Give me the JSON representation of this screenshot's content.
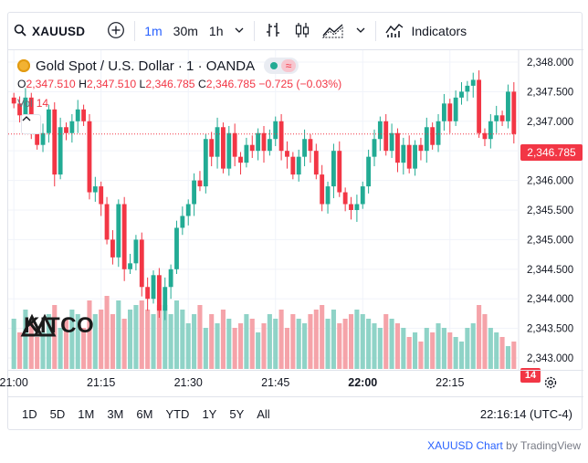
{
  "toolbar": {
    "symbol": "XAUUSD",
    "timeframes": [
      "1m",
      "30m",
      "1h"
    ],
    "active_timeframe": "1m",
    "indicators_label": "Indicators"
  },
  "legend": {
    "title": "Gold Spot / U.S. Dollar · 1 · OANDA",
    "o_label": "O",
    "o_value": "2,347.510",
    "h_label": "H",
    "h_value": "2,347.510",
    "l_label": "L",
    "l_value": "2,346.785",
    "c_label": "C",
    "c_value": "2,346.785",
    "change": "−0.725 (−0.03%)",
    "vol_label": "Vol",
    "vol_value": "14"
  },
  "colors": {
    "up": "#22ab94",
    "down": "#f23645",
    "up_vol": "#8fd3c7",
    "down_vol": "#f5a3a9",
    "accent": "#2962ff"
  },
  "watermark": "KITCO",
  "current_price": "2,346.785",
  "volume_badge": "14",
  "bottom": {
    "ranges": [
      "1D",
      "5D",
      "1M",
      "3M",
      "6M",
      "YTD",
      "1Y",
      "5Y",
      "All"
    ],
    "clock": "22:16:14 (UTC-4)"
  },
  "attribution": {
    "symbol_link": "XAUUSD Chart",
    "by": "by TradingView"
  },
  "chart_data": {
    "type": "candlestick",
    "price_ticks": [
      "2,348.000",
      "2,347.500",
      "2,347.000",
      "2,346.500",
      "2,346.000",
      "2,345.500",
      "2,345.000",
      "2,344.500",
      "2,344.000",
      "2,343.500",
      "2,343.000"
    ],
    "time_ticks": [
      {
        "label": "21:00",
        "bold": false,
        "minute": 0
      },
      {
        "label": "21:15",
        "bold": false,
        "minute": 15
      },
      {
        "label": "21:30",
        "bold": false,
        "minute": 30
      },
      {
        "label": "21:45",
        "bold": false,
        "minute": 45
      },
      {
        "label": "22:00",
        "bold": true,
        "minute": 60
      },
      {
        "label": "22:15",
        "bold": false,
        "minute": 75
      }
    ],
    "ylim": [
      2342.8,
      2348.2
    ],
    "closes": [
      2347.3,
      2347.1,
      2347.4,
      2346.9,
      2346.6,
      2346.8,
      2347.2,
      2346.1,
      2346.9,
      2346.8,
      2347.0,
      2347.2,
      2347.0,
      2345.8,
      2345.9,
      2345.6,
      2345.0,
      2344.7,
      2345.6,
      2344.5,
      2344.6,
      2345.0,
      2344.2,
      2344.0,
      2344.4,
      2343.8,
      2344.2,
      2344.5,
      2345.2,
      2345.4,
      2345.6,
      2346.0,
      2345.9,
      2346.7,
      2346.4,
      2346.9,
      2346.2,
      2346.8,
      2346.4,
      2346.3,
      2346.6,
      2346.5,
      2346.8,
      2346.5,
      2346.7,
      2347.0,
      2346.5,
      2346.4,
      2346.1,
      2346.4,
      2346.7,
      2346.5,
      2346.1,
      2345.6,
      2345.9,
      2346.5,
      2345.8,
      2345.6,
      2345.5,
      2345.6,
      2345.9,
      2346.4,
      2346.7,
      2347.0,
      2346.5,
      2346.8,
      2346.3,
      2346.6,
      2346.2,
      2346.6,
      2346.5,
      2346.9,
      2346.6,
      2347.0,
      2347.3,
      2347.0,
      2347.4,
      2347.5,
      2347.6,
      2347.7,
      2346.8,
      2346.7,
      2347.0,
      2347.1,
      2347.0,
      2347.5,
      2346.785
    ],
    "volumes": [
      11,
      8,
      13,
      10,
      7,
      8,
      12,
      14,
      9,
      11,
      13,
      12,
      9,
      15,
      12,
      13,
      16,
      12,
      15,
      11,
      13,
      14,
      15,
      13,
      12,
      14,
      14,
      12,
      15,
      13,
      10,
      12,
      14,
      9,
      12,
      10,
      13,
      11,
      9,
      10,
      12,
      11,
      8,
      10,
      12,
      11,
      13,
      9,
      12,
      11,
      10,
      12,
      13,
      14,
      11,
      13,
      10,
      11,
      12,
      13,
      12,
      11,
      10,
      9,
      12,
      11,
      10,
      9,
      7,
      8,
      6,
      9,
      8,
      10,
      9,
      8,
      7,
      6,
      9,
      10,
      14,
      12,
      9,
      8,
      7,
      5,
      6
    ]
  }
}
